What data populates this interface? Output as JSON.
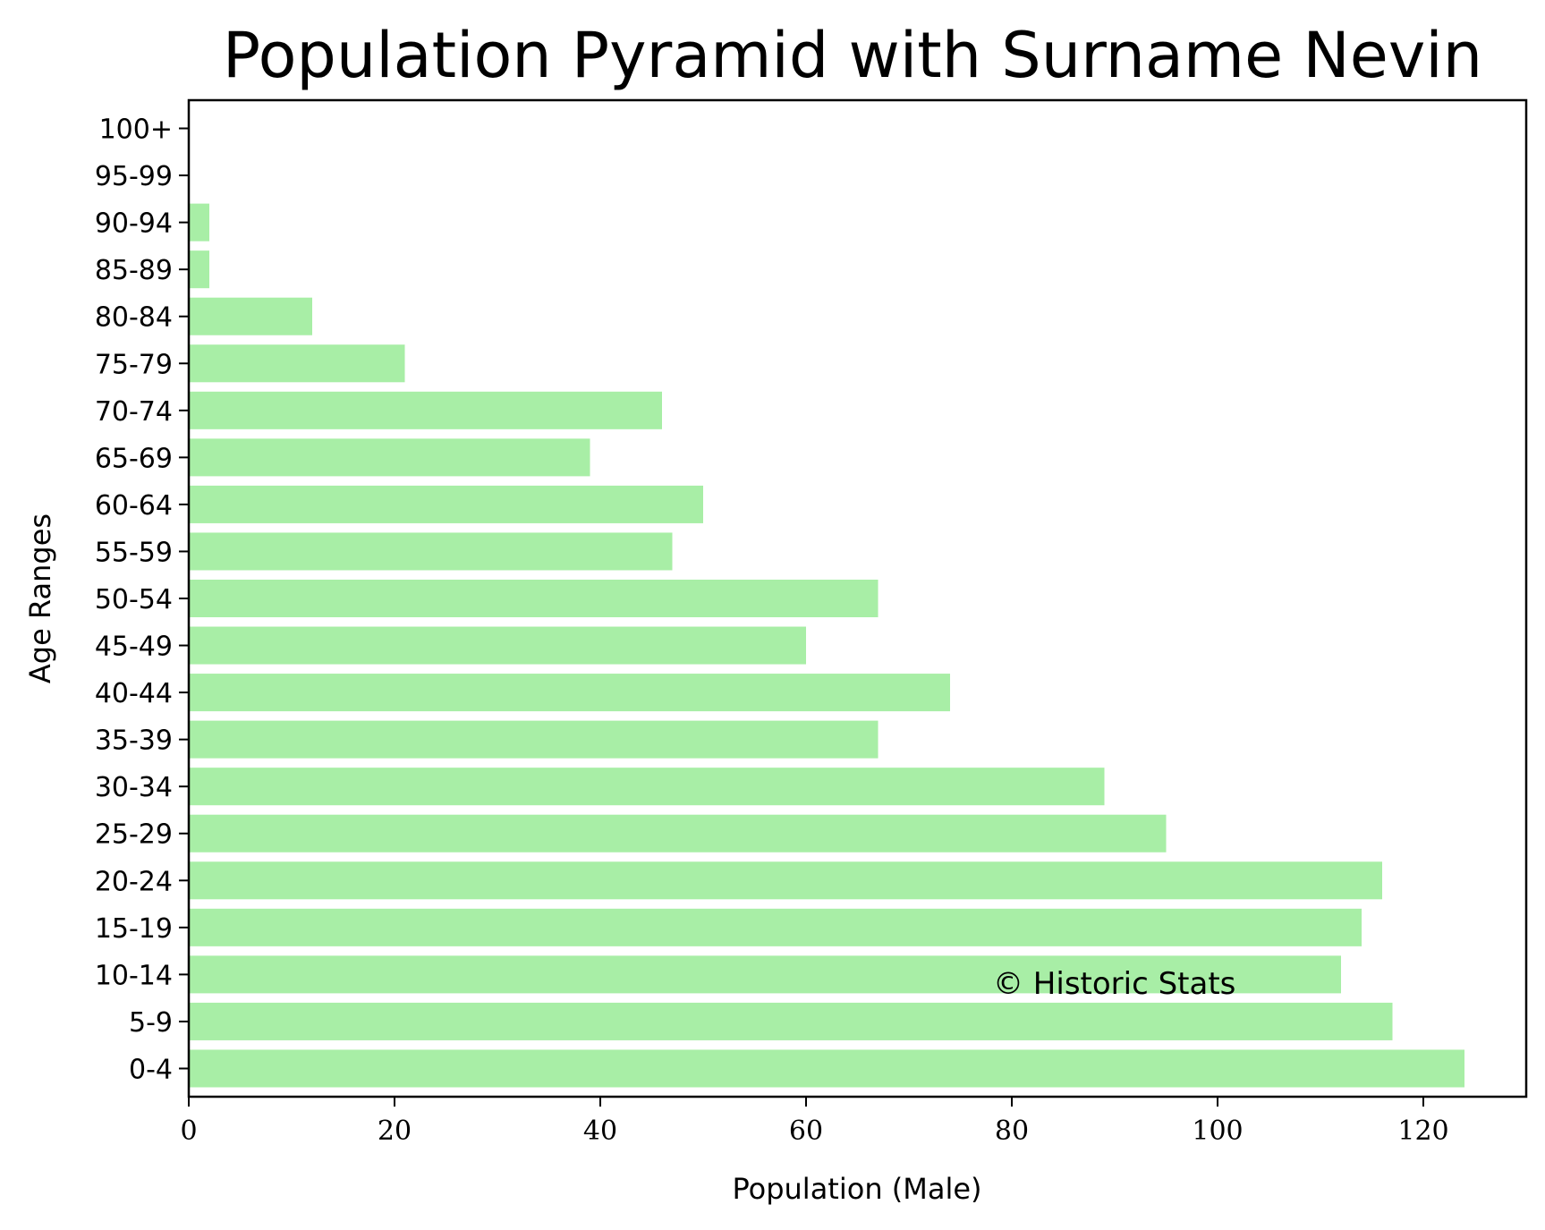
{
  "chart_data": {
    "type": "bar",
    "orientation": "horizontal",
    "title": "Population Pyramid with Surname Nevin",
    "xlabel": "Population (Male)",
    "ylabel": "Age Ranges",
    "categories": [
      "0-4",
      "5-9",
      "10-14",
      "15-19",
      "20-24",
      "25-29",
      "30-34",
      "35-39",
      "40-44",
      "45-49",
      "50-54",
      "55-59",
      "60-64",
      "65-69",
      "70-74",
      "75-79",
      "80-84",
      "85-89",
      "90-94",
      "95-99",
      "100+"
    ],
    "values": [
      124,
      117,
      112,
      114,
      116,
      95,
      89,
      67,
      74,
      60,
      67,
      47,
      50,
      39,
      46,
      21,
      12,
      2,
      2,
      0,
      0
    ],
    "xlim": [
      0,
      130
    ],
    "xticks": [
      0,
      20,
      40,
      60,
      80,
      100,
      120
    ],
    "grid": false,
    "bar_color": "#a8eea6",
    "annotation": "© Historic Stats"
  }
}
